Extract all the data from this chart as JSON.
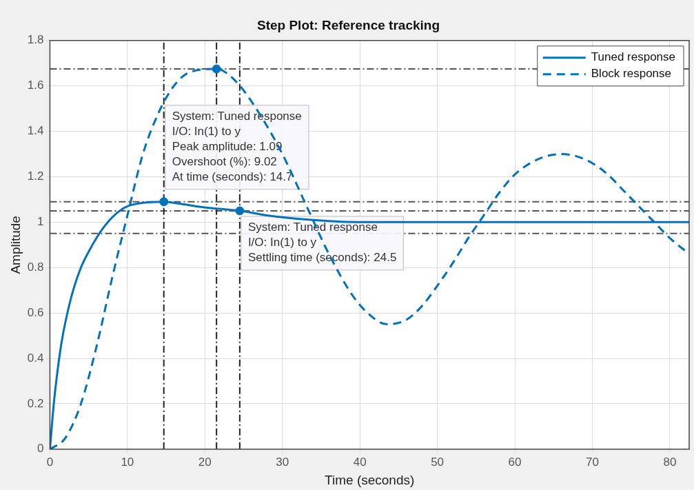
{
  "chart_data": {
    "type": "line",
    "title": "Step Plot: Reference tracking",
    "xlabel": "Time (seconds)",
    "ylabel": "Amplitude",
    "xlim": [
      0,
      82.5
    ],
    "xticks": [
      0,
      10,
      20,
      30,
      40,
      50,
      60,
      70,
      80
    ],
    "ylim": [
      0,
      1.8
    ],
    "yticks": [
      0,
      0.2,
      0.4,
      0.6,
      0.8,
      1,
      1.2,
      1.4,
      1.6,
      1.8
    ],
    "grid": true,
    "legend": "top right",
    "marker": "none",
    "series": [
      {
        "name": "Tuned response",
        "color": "#0072bd",
        "line_style": "solid",
        "x": [
          0,
          0.5,
          1,
          1.5,
          2,
          3,
          4,
          5,
          6,
          7,
          8,
          9,
          10,
          12,
          14.7,
          17,
          20,
          24.5,
          28,
          32,
          36,
          40,
          50,
          60,
          70,
          82.5
        ],
        "values": [
          0,
          0.2,
          0.35,
          0.47,
          0.56,
          0.7,
          0.8,
          0.87,
          0.93,
          0.98,
          1.02,
          1.05,
          1.07,
          1.085,
          1.09,
          1.08,
          1.065,
          1.05,
          1.03,
          1.015,
          1.005,
          1,
          1,
          1,
          1,
          1
        ]
      },
      {
        "name": "Block response",
        "color": "#0072bd",
        "line_style": "dashed",
        "x": [
          0,
          2,
          4,
          6,
          8,
          10,
          12,
          14,
          16,
          18,
          21.5,
          24,
          27,
          30,
          33,
          36,
          39,
          41,
          43.5,
          46,
          48,
          50,
          52,
          54,
          56,
          58,
          60,
          62,
          64,
          66,
          68,
          70,
          72,
          74,
          76,
          78,
          80,
          82.5
        ],
        "values": [
          0,
          0.05,
          0.2,
          0.45,
          0.75,
          1.03,
          1.3,
          1.48,
          1.6,
          1.66,
          1.675,
          1.62,
          1.48,
          1.3,
          1.08,
          0.86,
          0.68,
          0.6,
          0.55,
          0.57,
          0.63,
          0.72,
          0.82,
          0.93,
          1.03,
          1.13,
          1.21,
          1.26,
          1.29,
          1.3,
          1.29,
          1.26,
          1.21,
          1.14,
          1.07,
          1,
          0.93,
          0.86
        ]
      },
      {
        "type": "scatter",
        "color": "#0072bd",
        "marker": "circle",
        "x": [
          14.7,
          21.5,
          24.5
        ],
        "values": [
          1.09,
          1.675,
          1.05
        ]
      }
    ],
    "ref_lines": [
      {
        "axis": "y",
        "value": 1.675,
        "color": "#555555",
        "line_style": "dashdot"
      },
      {
        "axis": "y",
        "value": 1.09,
        "color": "#555555",
        "line_style": "dashdot"
      },
      {
        "axis": "y",
        "value": 1.05,
        "color": "#555555",
        "line_style": "dashdot"
      },
      {
        "axis": "y",
        "value": 0.95,
        "color": "#555555",
        "line_style": "dashdot"
      },
      {
        "axis": "x",
        "value": 14.7,
        "color": "#222222",
        "line_style": "dashdot"
      },
      {
        "axis": "x",
        "value": 21.5,
        "color": "#222222",
        "line_style": "dashdot"
      },
      {
        "axis": "x",
        "value": 24.5,
        "color": "#222222",
        "line_style": "dashdot"
      }
    ],
    "annotations": [
      {
        "text": "System: Tuned response\nI/O: In(1) to y\nPeak amplitude: 1.09\nOvershoot (%): 9.02\nAt time (seconds): 14.7",
        "x": 14.7,
        "y": 1.09
      },
      {
        "text": "System: Tuned response\nI/O: In(1) to y\nSettling time (seconds): 24.5",
        "x": 24.5,
        "y": 1.05
      }
    ]
  }
}
